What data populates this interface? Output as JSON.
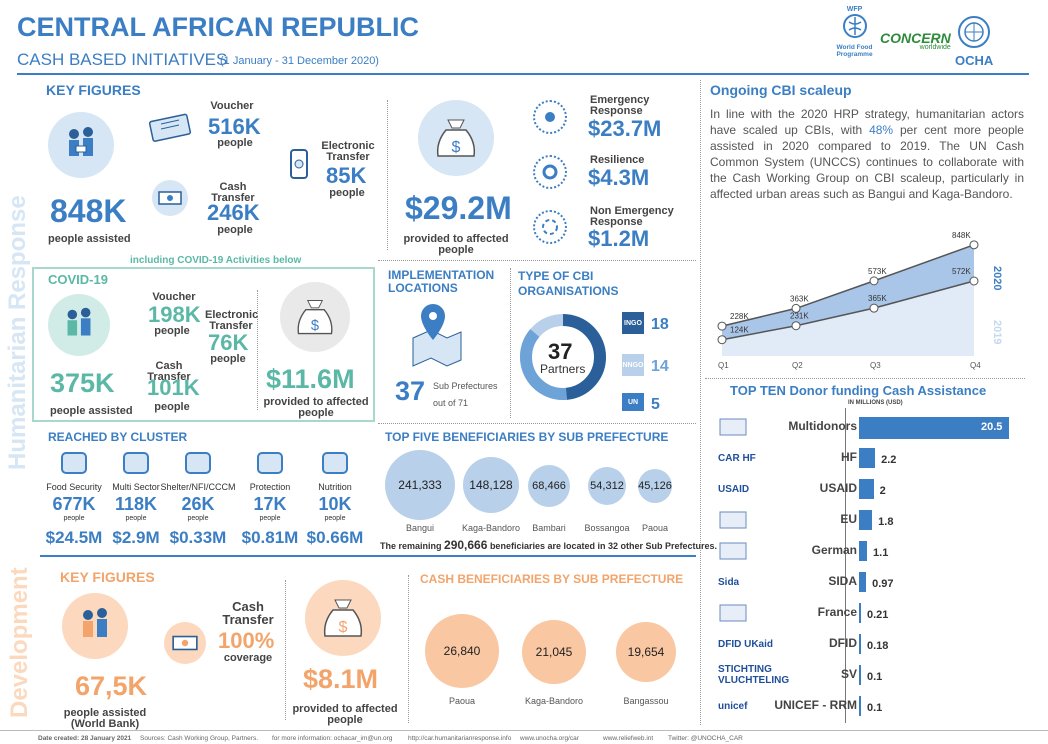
{
  "header": {
    "title": "CENTRAL AFRICAN REPUBLIC",
    "subtitle": "CASH BASED INITIATIVES",
    "period": "(1 January - 31 December 2020)"
  },
  "logos": {
    "wfp_top": "WFP",
    "wfp": "World Food Programme",
    "concern": "CONCERN",
    "concern_sub": "worldwide",
    "ocha": "OCHA"
  },
  "sidebar": {
    "humanitarian": "Humanitarian Response",
    "development": "Development"
  },
  "key_figures": {
    "title": "KEY FIGURES",
    "assisted_value": "848K",
    "assisted_label": "people assisted",
    "voucher_label": "Voucher",
    "voucher_value": "516K",
    "voucher_sub": "people",
    "electronic_label": "Electronic Transfer",
    "electronic_value": "85K",
    "electronic_sub": "people",
    "cash_label": "Cash Transfer",
    "cash_value": "246K",
    "cash_sub": "people",
    "provided_value": "$29.2M",
    "provided_label": "provided to affected people",
    "emergency_label": "Emergency Response",
    "emergency_value": "$23.7M",
    "resilience_label": "Resilience",
    "resilience_value": "$4.3M",
    "nonemergency_label": "Non Emergency Response",
    "nonemergency_value": "$1.2M"
  },
  "covid": {
    "note": "including COVID-19 Activities below",
    "title": "COVID-19",
    "assisted_value": "375K",
    "assisted_label": "people assisted",
    "voucher_label": "Voucher",
    "voucher_value": "198K",
    "voucher_sub": "people",
    "electronic_label": "Electronic Transfer",
    "electronic_value": "76K",
    "electronic_sub": "people",
    "cash_label": "Cash Transfer",
    "cash_value": "101K",
    "cash_sub": "people",
    "provided_value": "$11.6M",
    "provided_label": "provided to affected people"
  },
  "implementation": {
    "title": "IMPLEMENTATION LOCATIONS",
    "value": "37",
    "text": "Sub Prefectures",
    "text2": "out of 71"
  },
  "organisations": {
    "title": "TYPE OF CBI ORGANISATIONS",
    "total": "37",
    "total_label": "Partners",
    "types": [
      {
        "name": "INGO",
        "value": "18"
      },
      {
        "name": "NNGO",
        "value": "14"
      },
      {
        "name": "UN",
        "value": "5"
      }
    ]
  },
  "cluster": {
    "title": "REACHED BY CLUSTER",
    "items": [
      {
        "name": "Food Security",
        "people": "677K",
        "people_sub": "people",
        "amount": "$24.5M"
      },
      {
        "name": "Multi Sector",
        "people": "118K",
        "people_sub": "people",
        "amount": "$2.9M"
      },
      {
        "name": "Shelter/NFI/CCCM",
        "people": "26K",
        "people_sub": "people",
        "amount": "$0.33M"
      },
      {
        "name": "Protection",
        "people": "17K",
        "people_sub": "people",
        "amount": "$0.81M"
      },
      {
        "name": "Nutrition",
        "people": "10K",
        "people_sub": "people",
        "amount": "$0.66M"
      }
    ]
  },
  "top_five": {
    "title": "TOP FIVE BENEFICIARIES BY SUB PREFECTURE",
    "items": [
      {
        "value": "241,333",
        "name": "Bangui"
      },
      {
        "value": "148,128",
        "name": "Kaga-Bandoro"
      },
      {
        "value": "68,466",
        "name": "Bambari"
      },
      {
        "value": "54,312",
        "name": "Bossangoa"
      },
      {
        "value": "45,126",
        "name": "Paoua"
      }
    ],
    "note_pre": "The remaining",
    "note_value": "290,666",
    "note_post": "beneficiaries are located in 32 other Sub Prefectures."
  },
  "dev": {
    "title": "KEY FIGURES",
    "assisted_value": "67,5K",
    "assisted_label": "people assisted (World Bank)",
    "cash_label": "Cash Transfer",
    "cash_value": "100%",
    "cash_sub": "coverage",
    "provided_value": "$8.1M",
    "provided_label": "provided to affected people"
  },
  "cash_benef": {
    "title": "CASH BENEFICIARIES BY SUB PREFECTURE",
    "items": [
      {
        "value": "26,840",
        "name": "Paoua"
      },
      {
        "value": "21,045",
        "name": "Kaga-Bandoro"
      },
      {
        "value": "19,654",
        "name": "Bangassou"
      }
    ]
  },
  "scaleup": {
    "title": "Ongoing CBI scaleup",
    "text_pre": "In line with the 2020 HRP strategy, humanitarian actors have scaled up CBIs, with",
    "text_pct": "48%",
    "text_post": "per cent more people assisted in 2020 compared to 2019. The UN Cash Common System (UNCCS) continues to collaborate with the Cash Working Group on CBI scaleup, particularly in affected urban areas such as Bangui and Kaga-Bandoro."
  },
  "chart_data": {
    "type": "area",
    "categories": [
      "Q1",
      "Q2",
      "Q3",
      "Q4"
    ],
    "series": [
      {
        "name": "2020",
        "values": [
          228,
          363,
          573,
          848
        ],
        "labels": [
          "228K",
          "363K",
          "573K",
          "848K"
        ]
      },
      {
        "name": "2019",
        "values": [
          124,
          231,
          365,
          572
        ],
        "labels": [
          "124K",
          "231K",
          "365K",
          "572K"
        ]
      }
    ],
    "ylim": [
      0,
      900
    ]
  },
  "donors": {
    "title": "TOP TEN Donor funding Cash Assistance",
    "unit": "IN MILLIONS (USD)",
    "items": [
      {
        "name": "Multidonors",
        "value": 20.5,
        "label": "20.5"
      },
      {
        "name": "HF",
        "value": 2.2,
        "label": "2.2",
        "logo": "CAR HF"
      },
      {
        "name": "USAID",
        "value": 2.0,
        "label": "2",
        "logo": "USAID"
      },
      {
        "name": "EU",
        "value": 1.8,
        "label": "1.8"
      },
      {
        "name": "German",
        "value": 1.1,
        "label": "1.1"
      },
      {
        "name": "SIDA",
        "value": 0.97,
        "label": "0.97",
        "logo": "Sida"
      },
      {
        "name": "France",
        "value": 0.21,
        "label": "0.21"
      },
      {
        "name": "DFID",
        "value": 0.18,
        "label": "0.18",
        "logo": "DFID UKaid"
      },
      {
        "name": "SV",
        "value": 0.1,
        "label": "0.1",
        "logo": "STICHTING VLUCHTELING"
      },
      {
        "name": "UNICEF - RRM",
        "value": 0.1,
        "label": "0.1",
        "logo": "unicef"
      }
    ]
  },
  "footer": {
    "date": "Date created: 28 January 2021",
    "sources": "Sources: Cash Working Group, Partners.",
    "info": "for more information: ochacar_im@un.org",
    "url1": "http://car.humanitarianresponse.info",
    "url2": "www.unocha.org/car",
    "url3": "www.reliefweb.int",
    "twitter": "Twitter: @UNOCHA_CAR"
  },
  "colors": {
    "blue": "#3b7ec3",
    "teal": "#5bb8a6",
    "orange": "#f2a46b"
  }
}
